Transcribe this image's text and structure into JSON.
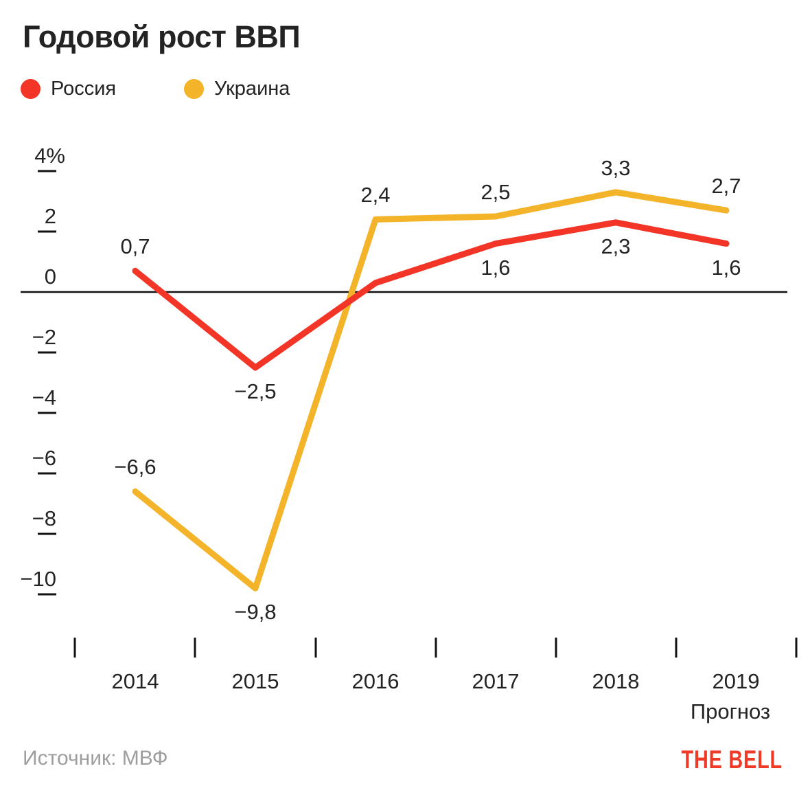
{
  "header": {
    "title": "Годовой рост ВВП"
  },
  "legend": {
    "items": [
      {
        "label": "Россия",
        "color": "#f23527"
      },
      {
        "label": "Украина",
        "color": "#f3b42a"
      }
    ]
  },
  "footer": {
    "source": "Источник: МВФ",
    "brand": "THE BELL"
  },
  "chart_data": {
    "type": "line",
    "title": "Годовой рост ВВП",
    "categories": [
      "2014",
      "2015",
      "2016",
      "2017",
      "2018",
      "2019"
    ],
    "x_note": {
      "category": "2019",
      "label": "Прогноз"
    },
    "series": [
      {
        "name": "Украина",
        "color": "#f3b42a",
        "values": [
          -6.6,
          -9.8,
          2.4,
          2.5,
          3.3,
          2.7
        ],
        "labels": [
          "−6,6",
          "−9,8",
          "2,4",
          "2,5",
          "3,3",
          "2,7"
        ],
        "label_placement": [
          "above",
          "below",
          "above",
          "above",
          "above",
          "above"
        ]
      },
      {
        "name": "Россия",
        "color": "#f23527",
        "values": [
          0.7,
          -2.5,
          0.3,
          1.6,
          2.3,
          1.6
        ],
        "labels": [
          "0,7",
          "−2,5",
          null,
          "1,6",
          "2,3",
          "1,6"
        ],
        "label_placement": [
          "above",
          "below",
          null,
          "below",
          "below",
          "below"
        ]
      }
    ],
    "yticks": [
      {
        "value": 4,
        "label": "4%"
      },
      {
        "value": 2,
        "label": "2"
      },
      {
        "value": 0,
        "label": "0"
      },
      {
        "value": -2,
        "label": "−2"
      },
      {
        "value": -4,
        "label": "−4"
      },
      {
        "value": -6,
        "label": "−6"
      },
      {
        "value": -8,
        "label": "−8"
      },
      {
        "value": -10,
        "label": "−10"
      }
    ],
    "ylim": [
      -11,
      4.5
    ],
    "ylabel": "%",
    "xlabel": "",
    "grid": false,
    "baseline": 0,
    "legend_position": "top-left"
  }
}
